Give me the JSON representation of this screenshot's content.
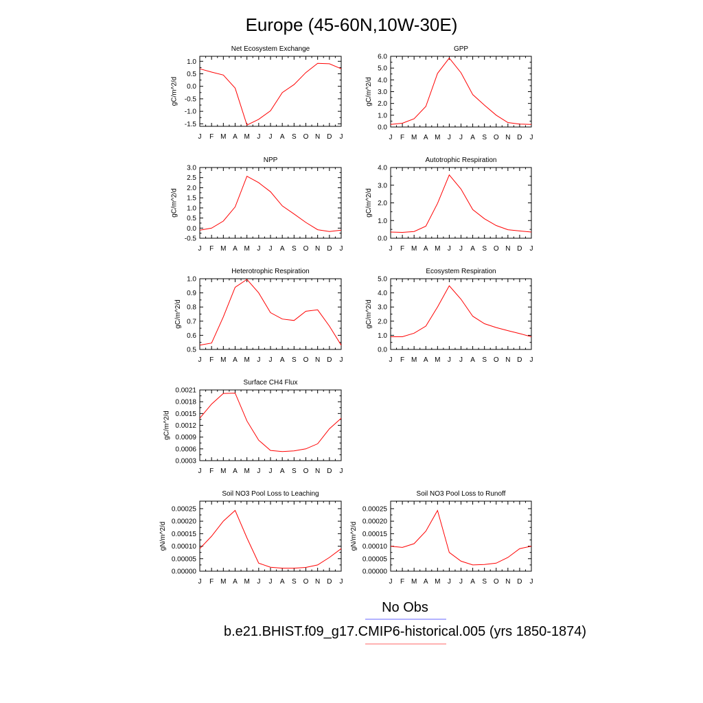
{
  "title": "Europe (45-60N,10W-30E)",
  "legend": [
    {
      "label": "No Obs",
      "color": "#0000ff"
    },
    {
      "label": "b.e21.BHIST.f09_g17.CMIP6-historical.005 (yrs 1850-1874)",
      "color": "#ff0000"
    }
  ],
  "line_color": "#ff0000",
  "chart_data": [
    {
      "type": "line",
      "title": "Net Ecosystem Exchange",
      "ylabel": "gC/m^2/d",
      "x": [
        "J",
        "F",
        "M",
        "A",
        "M",
        "J",
        "J",
        "A",
        "S",
        "O",
        "N",
        "D",
        "J"
      ],
      "ylim": [
        -1.6,
        1.2
      ],
      "yticks": [
        1.0,
        0.5,
        0.0,
        -0.5,
        -1.0,
        -1.5
      ],
      "ytick_labels": [
        "1.0",
        "0.5",
        "0.0",
        "-0.5",
        "-1.0",
        "-1.5"
      ],
      "values": [
        0.7,
        0.57,
        0.45,
        -0.07,
        -1.55,
        -1.32,
        -0.98,
        -0.25,
        0.07,
        0.55,
        0.92,
        0.9,
        0.7
      ]
    },
    {
      "type": "line",
      "title": "GPP",
      "ylabel": "gC/m^2/d",
      "x": [
        "J",
        "F",
        "M",
        "A",
        "M",
        "J",
        "J",
        "A",
        "S",
        "O",
        "N",
        "D",
        "J"
      ],
      "ylim": [
        0.0,
        6.0
      ],
      "yticks": [
        6.0,
        5.0,
        4.0,
        3.0,
        2.0,
        1.0,
        0.0
      ],
      "ytick_labels": [
        "6.0",
        "5.0",
        "4.0",
        "3.0",
        "2.0",
        "1.0",
        "0.0"
      ],
      "values": [
        0.22,
        0.32,
        0.7,
        1.75,
        4.55,
        5.85,
        4.6,
        2.75,
        1.85,
        1.0,
        0.38,
        0.25,
        0.22
      ]
    },
    {
      "type": "line",
      "title": "NPP",
      "ylabel": "gC/m^2/d",
      "x": [
        "J",
        "F",
        "M",
        "A",
        "M",
        "J",
        "J",
        "A",
        "S",
        "O",
        "N",
        "D",
        "J"
      ],
      "ylim": [
        -0.5,
        3.0
      ],
      "yticks": [
        3.0,
        2.5,
        2.0,
        1.5,
        1.0,
        0.5,
        0.0,
        -0.5
      ],
      "ytick_labels": [
        "3.0",
        "2.5",
        "2.0",
        "1.5",
        "1.0",
        "0.5",
        "0.0",
        "-0.5"
      ],
      "values": [
        -0.1,
        0.0,
        0.35,
        1.05,
        2.57,
        2.25,
        1.8,
        1.1,
        0.7,
        0.28,
        -0.08,
        -0.17,
        -0.1
      ]
    },
    {
      "type": "line",
      "title": "Autotrophic Respiration",
      "ylabel": "gC/m^2/d",
      "x": [
        "J",
        "F",
        "M",
        "A",
        "M",
        "J",
        "J",
        "A",
        "S",
        "O",
        "N",
        "D",
        "J"
      ],
      "ylim": [
        0.0,
        4.0
      ],
      "yticks": [
        4.0,
        3.0,
        2.0,
        1.0,
        0.0
      ],
      "ytick_labels": [
        "4.0",
        "3.0",
        "2.0",
        "1.0",
        "0.0"
      ],
      "values": [
        0.35,
        0.33,
        0.38,
        0.68,
        1.97,
        3.58,
        2.78,
        1.62,
        1.1,
        0.72,
        0.48,
        0.41,
        0.35
      ]
    },
    {
      "type": "line",
      "title": "Heterotrophic Respiration",
      "ylabel": "gC/m^2/d",
      "x": [
        "J",
        "F",
        "M",
        "A",
        "M",
        "J",
        "J",
        "A",
        "S",
        "O",
        "N",
        "D",
        "J"
      ],
      "ylim": [
        0.5,
        1.0
      ],
      "yticks": [
        1.0,
        0.9,
        0.8,
        0.7,
        0.6,
        0.5
      ],
      "ytick_labels": [
        "1.0",
        "0.9",
        "0.8",
        "0.7",
        "0.6",
        "0.5"
      ],
      "values": [
        0.53,
        0.545,
        0.73,
        0.94,
        0.995,
        0.9,
        0.76,
        0.715,
        0.705,
        0.77,
        0.78,
        0.665,
        0.53
      ]
    },
    {
      "type": "line",
      "title": "Ecosystem Respiration",
      "ylabel": "gC/m^2/d",
      "x": [
        "J",
        "F",
        "M",
        "A",
        "M",
        "J",
        "J",
        "A",
        "S",
        "O",
        "N",
        "D",
        "J"
      ],
      "ylim": [
        0.0,
        5.0
      ],
      "yticks": [
        5.0,
        4.0,
        3.0,
        2.0,
        1.0,
        0.0
      ],
      "ytick_labels": [
        "5.0",
        "4.0",
        "3.0",
        "2.0",
        "1.0",
        "0.0"
      ],
      "values": [
        0.9,
        0.9,
        1.15,
        1.65,
        3.0,
        4.5,
        3.55,
        2.35,
        1.82,
        1.55,
        1.33,
        1.12,
        0.9
      ]
    },
    {
      "type": "line",
      "title": "Surface CH4 Flux",
      "ylabel": "gC/m^2/d",
      "x": [
        "J",
        "F",
        "M",
        "A",
        "M",
        "J",
        "J",
        "A",
        "S",
        "O",
        "N",
        "D",
        "J"
      ],
      "ylim": [
        0.0003,
        0.0021
      ],
      "yticks": [
        0.0021,
        0.0018,
        0.0015,
        0.0012,
        0.0009,
        0.0006,
        0.0003
      ],
      "ytick_labels": [
        "0.0021",
        "0.0018",
        "0.0015",
        "0.0012",
        "0.0009",
        "0.0006",
        "0.0003"
      ],
      "values": [
        0.00138,
        0.00174,
        0.00201,
        0.00202,
        0.00131,
        0.00082,
        0.00056,
        0.00053,
        0.00055,
        0.0006,
        0.00073,
        0.00111,
        0.00138
      ]
    },
    {
      "type": "line",
      "title": "Soil NO3 Pool Loss to Leaching",
      "ylabel": "gN/m^2/d",
      "x": [
        "J",
        "F",
        "M",
        "A",
        "M",
        "J",
        "J",
        "A",
        "S",
        "O",
        "N",
        "D",
        "J"
      ],
      "ylim": [
        0.0,
        0.00028
      ],
      "yticks": [
        0.00025,
        0.0002,
        0.00015,
        0.0001,
        5e-05,
        0.0
      ],
      "ytick_labels": [
        "0.00025",
        "0.00020",
        "0.00015",
        "0.00010",
        "0.00005",
        "0.00000"
      ],
      "values": [
        9e-05,
        0.00014,
        0.0002,
        0.000243,
        0.000133,
        3.2e-05,
        1.6e-05,
        1.2e-05,
        1.2e-05,
        1.5e-05,
        2.5e-05,
        5.5e-05,
        9e-05
      ]
    },
    {
      "type": "line",
      "title": "Soil NO3 Pool Loss to Runoff",
      "ylabel": "gN/m^2/d",
      "x": [
        "J",
        "F",
        "M",
        "A",
        "M",
        "J",
        "J",
        "A",
        "S",
        "O",
        "N",
        "D",
        "J"
      ],
      "ylim": [
        0.0,
        0.00028
      ],
      "yticks": [
        0.00025,
        0.0002,
        0.00015,
        0.0001,
        5e-05,
        0.0
      ],
      "ytick_labels": [
        "0.00025",
        "0.00020",
        "0.00015",
        "0.00010",
        "0.00005",
        "0.00000"
      ],
      "values": [
        0.0001,
        9.5e-05,
        0.00011,
        0.00016,
        0.000243,
        7.5e-05,
        4e-05,
        2.5e-05,
        2.7e-05,
        3.2e-05,
        5.5e-05,
        9e-05,
        0.0001
      ]
    }
  ]
}
